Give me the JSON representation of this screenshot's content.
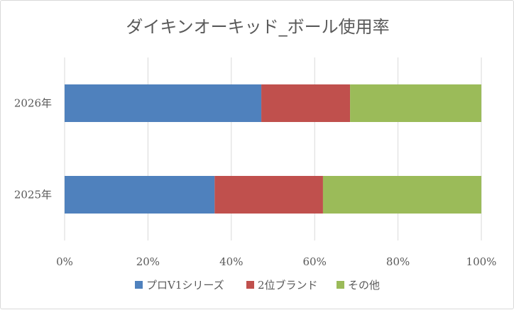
{
  "chart_data": {
    "type": "bar",
    "orientation": "horizontal",
    "stacked": "percent",
    "title": "ダイキンオーキッド_ボール使用率",
    "categories": [
      "2026年",
      "2025年"
    ],
    "series": [
      {
        "name": "プロV1シリーズ",
        "color": "#4f81bd",
        "values": [
          47.2,
          36.0
        ]
      },
      {
        "name": "2位ブランド",
        "color": "#c0504d",
        "values": [
          21.3,
          26.0
        ]
      },
      {
        "name": "その他",
        "color": "#9bbb59",
        "values": [
          31.5,
          38.0
        ]
      }
    ],
    "xlim": [
      0,
      100
    ],
    "xticks": [
      "0%",
      "20%",
      "40%",
      "60%",
      "80%",
      "100%"
    ],
    "grid": true,
    "legend_position": "bottom"
  }
}
